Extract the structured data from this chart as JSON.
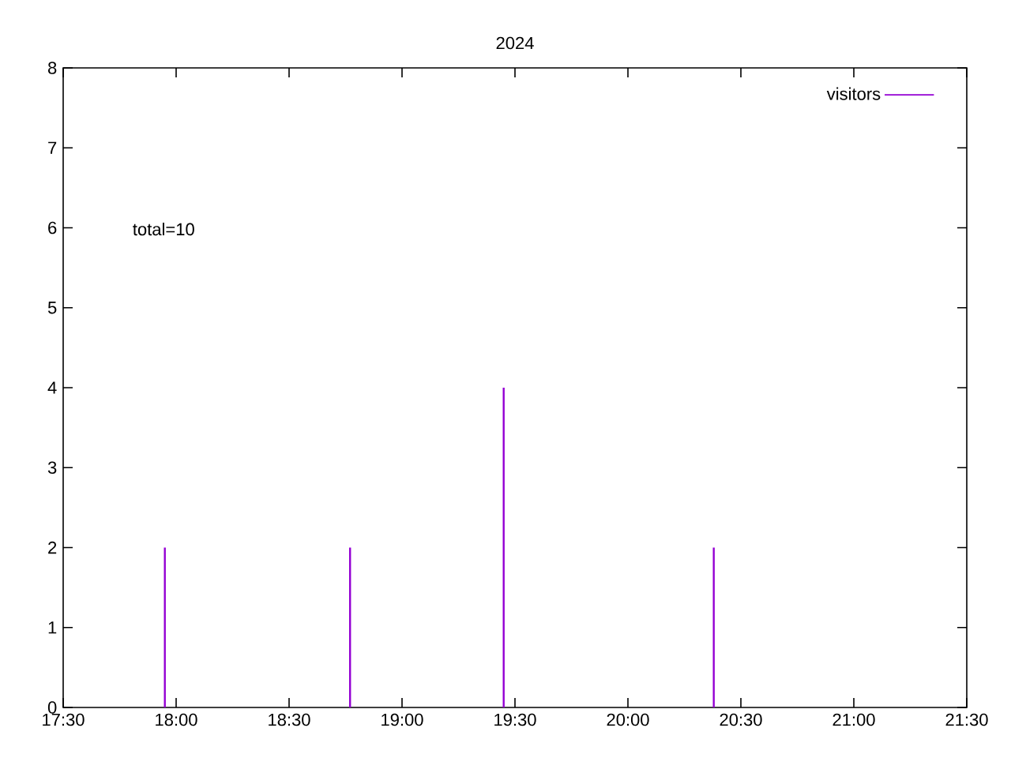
{
  "chart_data": {
    "type": "bar",
    "title": "2024",
    "x": [
      17.95,
      18.77,
      19.45,
      20.38
    ],
    "series": [
      {
        "name": "visitors",
        "color": "#9400d3",
        "values": [
          2,
          2,
          4,
          2
        ]
      }
    ],
    "xlim": [
      17.5,
      21.5
    ],
    "xticks": [
      {
        "value": 17.5,
        "label": "17:30"
      },
      {
        "value": 18,
        "label": "18:00"
      },
      {
        "value": 18.5,
        "label": "18:30"
      },
      {
        "value": 19,
        "label": "19:00"
      },
      {
        "value": 19.5,
        "label": "19:30"
      },
      {
        "value": 20,
        "label": "20:00"
      },
      {
        "value": 20.5,
        "label": "20:30"
      },
      {
        "value": 21,
        "label": "21:00"
      },
      {
        "value": 21.5,
        "label": "21:30"
      }
    ],
    "ylim": [
      0,
      8
    ],
    "yticks": [
      0,
      1,
      2,
      3,
      4,
      5,
      6,
      7,
      8
    ],
    "legend": "top right",
    "annotations": [
      "total=10"
    ]
  }
}
